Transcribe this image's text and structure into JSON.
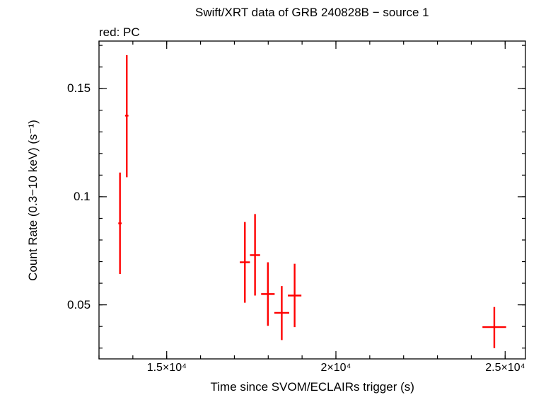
{
  "chart_data": {
    "type": "scatter",
    "title": "Swift/XRT data of GRB 240828B − source 1",
    "subtitle": "red: PC",
    "xlabel": "Time since SVOM/ECLAIRs trigger (s)",
    "ylabel": "Count Rate (0.3−10 keV) (s⁻¹)",
    "xlim": [
      13000,
      25600
    ],
    "ylim": [
      0.025,
      0.172
    ],
    "x_ticks": [
      {
        "value": 15000,
        "label": "1.5×10⁴"
      },
      {
        "value": 20000,
        "label": "2×10⁴"
      },
      {
        "value": 25000,
        "label": "2.5×10⁴"
      }
    ],
    "y_ticks": [
      {
        "value": 0.05,
        "label": "0.05"
      },
      {
        "value": 0.1,
        "label": "0.1"
      },
      {
        "value": 0.15,
        "label": "0.15"
      }
    ],
    "x_minor_step": 1000,
    "y_minor_step": 0.01,
    "grid": false,
    "series": [
      {
        "name": "PC",
        "color": "#ff0000",
        "points": [
          {
            "x": 13620,
            "xerr": 50,
            "y": 0.0877,
            "ylo": 0.0643,
            "yhi": 0.1112
          },
          {
            "x": 13820,
            "xerr": 50,
            "y": 0.1375,
            "ylo": 0.109,
            "yhi": 0.1655
          },
          {
            "x": 17310,
            "xerr": 150,
            "y": 0.0697,
            "ylo": 0.051,
            "yhi": 0.0883
          },
          {
            "x": 17610,
            "xerr": 150,
            "y": 0.073,
            "ylo": 0.0543,
            "yhi": 0.092
          },
          {
            "x": 17990,
            "xerr": 200,
            "y": 0.055,
            "ylo": 0.0403,
            "yhi": 0.0697
          },
          {
            "x": 18400,
            "xerr": 220,
            "y": 0.0463,
            "ylo": 0.0337,
            "yhi": 0.0587
          },
          {
            "x": 18780,
            "xerr": 200,
            "y": 0.0543,
            "ylo": 0.0397,
            "yhi": 0.069
          },
          {
            "x": 24680,
            "xerr": 350,
            "y": 0.0397,
            "ylo": 0.03,
            "yhi": 0.049
          }
        ]
      }
    ]
  }
}
